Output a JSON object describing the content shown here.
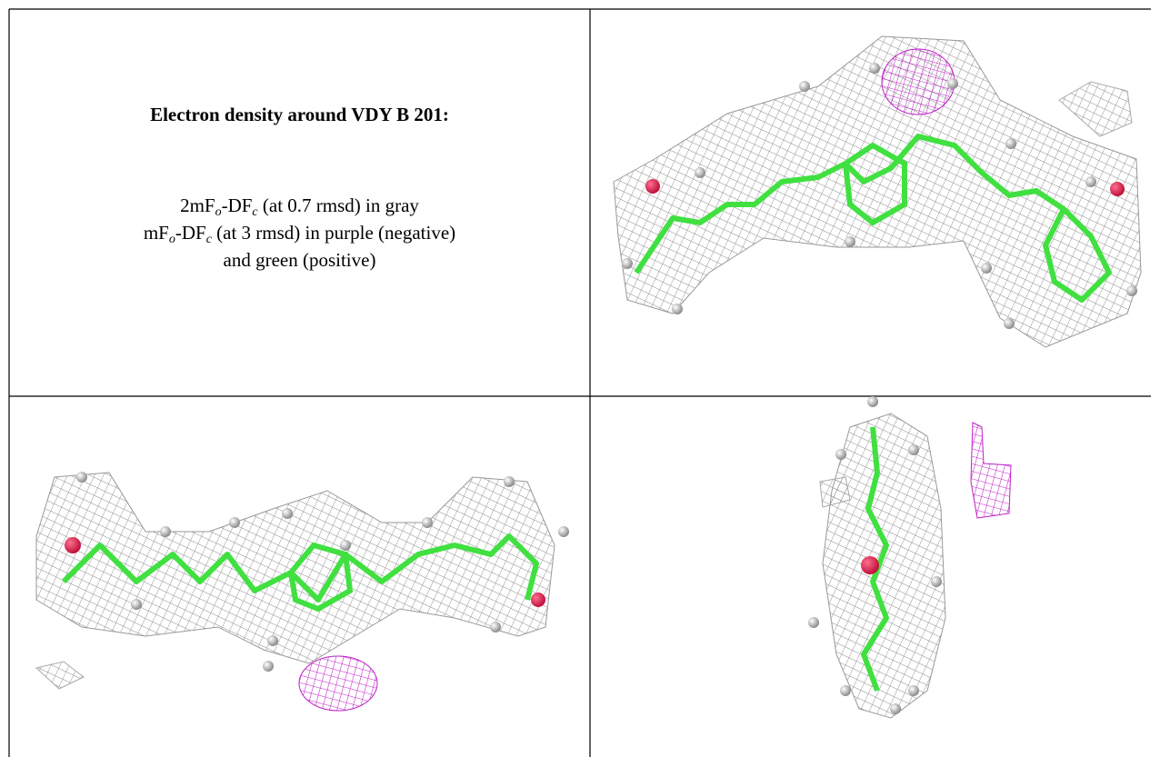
{
  "caption": {
    "title": "Electron density around VDY B 201:",
    "lines": [
      [
        "2mF",
        "o",
        "-DF",
        "c",
        " (at 0.7 rmsd) in gray"
      ],
      [
        "mF",
        "o",
        "-DF",
        "c",
        " (at 3 rmsd) in purple (negative)"
      ],
      [
        "and green (positive)"
      ]
    ]
  }
}
